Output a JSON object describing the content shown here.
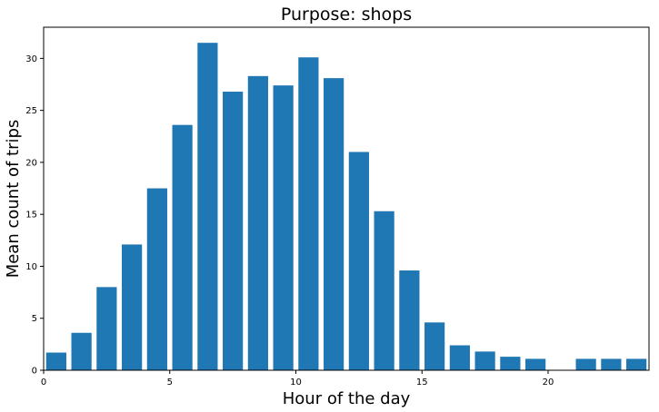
{
  "chart_data": {
    "type": "bar",
    "title": "Purpose: shops",
    "xlabel": "Hour of the day",
    "ylabel": "Mean count of trips",
    "x": [
      0,
      1,
      2,
      3,
      4,
      5,
      6,
      7,
      8,
      9,
      10,
      11,
      12,
      13,
      14,
      15,
      16,
      17,
      18,
      19,
      21,
      22,
      23
    ],
    "values": [
      1.7,
      3.6,
      8.0,
      12.1,
      17.5,
      23.6,
      31.5,
      26.8,
      28.3,
      27.4,
      30.1,
      28.1,
      21.0,
      15.3,
      9.6,
      4.6,
      2.4,
      1.8,
      1.3,
      1.1,
      1.1,
      1.1,
      1.1
    ],
    "xlim": [
      0,
      24
    ],
    "ylim": [
      0,
      33
    ],
    "xticks": [
      0,
      5,
      10,
      15,
      20
    ],
    "yticks": [
      0,
      5,
      10,
      15,
      20,
      25,
      30
    ],
    "bar_color": "#1f77b4",
    "grid": false,
    "legend": false
  }
}
